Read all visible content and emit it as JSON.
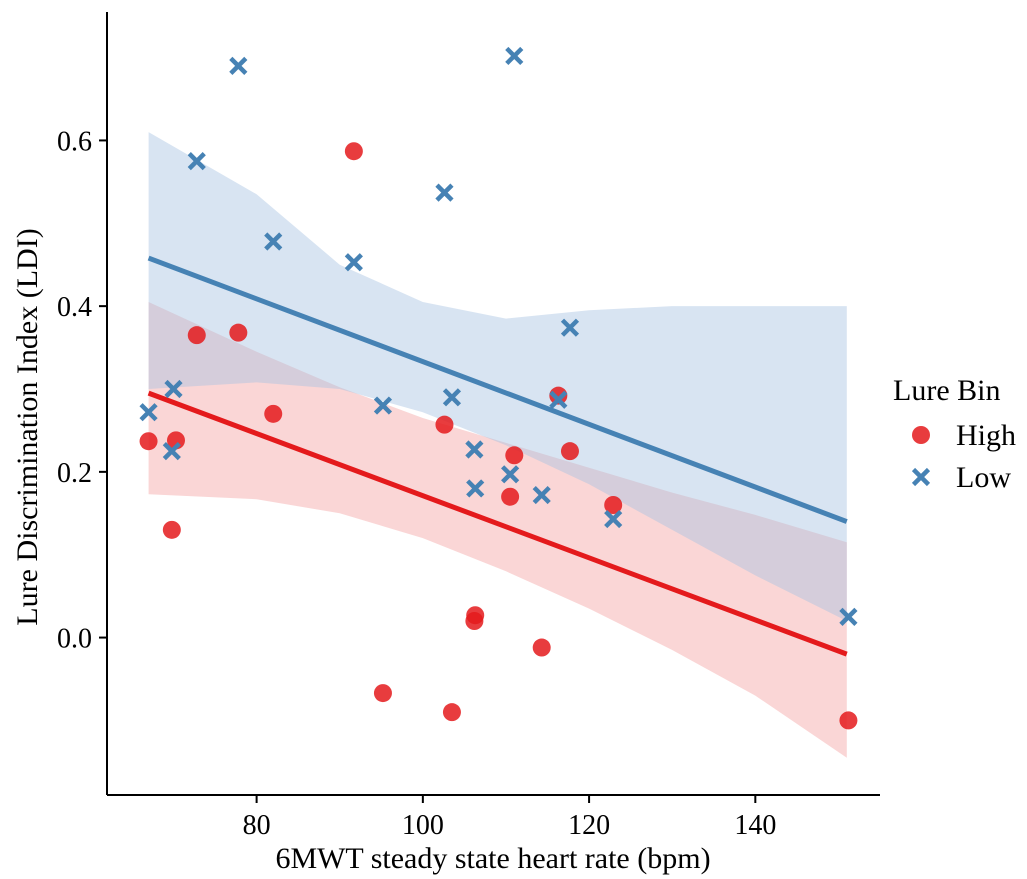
{
  "chart_data": {
    "type": "scatter",
    "xlabel": "6MWT steady state heart rate (bpm)",
    "ylabel": "Lure Discrimination Index (LDI)",
    "xlim": [
      62,
      155
    ],
    "ylim": [
      -0.19,
      0.755
    ],
    "x_ticks": [
      80,
      100,
      120,
      140
    ],
    "y_ticks": [
      0.0,
      0.2,
      0.4,
      0.6
    ],
    "x_tick_labels": [
      "80",
      "100",
      "120",
      "140"
    ],
    "y_tick_labels": [
      "0.0",
      "0.2",
      "0.4",
      "0.6"
    ],
    "grid": false,
    "legend": {
      "title": "Lure Bin",
      "position": "right"
    },
    "series": [
      {
        "name": "High",
        "marker": "circle",
        "color": "#e41a1c",
        "band_color": "#f4a3a5",
        "points": [
          [
            67,
            0.237
          ],
          [
            69.8,
            0.13
          ],
          [
            70.3,
            0.238
          ],
          [
            72.8,
            0.365
          ],
          [
            77.8,
            0.368
          ],
          [
            82,
            0.27
          ],
          [
            91.7,
            0.587
          ],
          [
            95.2,
            -0.067
          ],
          [
            102.6,
            0.257
          ],
          [
            103.5,
            -0.09
          ],
          [
            106.2,
            0.02
          ],
          [
            106.3,
            0.027
          ],
          [
            110.5,
            0.17
          ],
          [
            111,
            0.22
          ],
          [
            114.3,
            -0.012
          ],
          [
            116.3,
            0.292
          ],
          [
            117.7,
            0.225
          ],
          [
            122.9,
            0.16
          ],
          [
            151.2,
            -0.1
          ]
        ],
        "fit": {
          "x0": 67,
          "y0": 0.295,
          "x1": 151,
          "y1": -0.02
        },
        "ci": [
          [
            67,
            0.173,
            0.405
          ],
          [
            80,
            0.167,
            0.345
          ],
          [
            90,
            0.15,
            0.302
          ],
          [
            100,
            0.12,
            0.265
          ],
          [
            110,
            0.08,
            0.235
          ],
          [
            120,
            0.035,
            0.205
          ],
          [
            130,
            -0.015,
            0.175
          ],
          [
            140,
            -0.07,
            0.148
          ],
          [
            151,
            -0.145,
            0.115
          ]
        ]
      },
      {
        "name": "Low",
        "marker": "x",
        "color": "#4682b4",
        "band_color": "#a9c4e2",
        "points": [
          [
            67,
            0.272
          ],
          [
            69.8,
            0.225
          ],
          [
            70,
            0.3
          ],
          [
            72.8,
            0.575
          ],
          [
            77.8,
            0.69
          ],
          [
            82,
            0.478
          ],
          [
            91.7,
            0.453
          ],
          [
            95.2,
            0.28
          ],
          [
            102.6,
            0.537
          ],
          [
            103.5,
            0.29
          ],
          [
            106.2,
            0.227
          ],
          [
            106.3,
            0.18
          ],
          [
            110.5,
            0.197
          ],
          [
            111,
            0.702
          ],
          [
            114.3,
            0.172
          ],
          [
            116.3,
            0.287
          ],
          [
            117.7,
            0.374
          ],
          [
            122.9,
            0.143
          ],
          [
            151.2,
            0.025
          ]
        ],
        "fit": {
          "x0": 67,
          "y0": 0.458,
          "x1": 151,
          "y1": 0.14
        },
        "ci": [
          [
            67,
            0.3,
            0.61
          ],
          [
            80,
            0.308,
            0.535
          ],
          [
            90,
            0.3,
            0.45
          ],
          [
            100,
            0.272,
            0.405
          ],
          [
            110,
            0.232,
            0.385
          ],
          [
            120,
            0.185,
            0.395
          ],
          [
            130,
            0.13,
            0.4
          ],
          [
            140,
            0.075,
            0.4
          ],
          [
            151,
            0.02,
            0.4
          ]
        ]
      }
    ]
  }
}
